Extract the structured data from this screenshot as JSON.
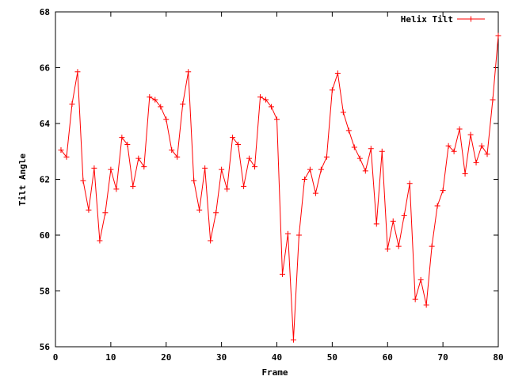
{
  "chart_data": {
    "type": "line",
    "xlabel": "Frame",
    "ylabel": "Tilt Angle",
    "xlim": [
      0,
      80
    ],
    "ylim": [
      56,
      68
    ],
    "xticks": [
      0,
      10,
      20,
      30,
      40,
      50,
      60,
      70,
      80
    ],
    "yticks": [
      56,
      58,
      60,
      62,
      64,
      66,
      68
    ],
    "grid": false,
    "legend_position": "top-right",
    "series": [
      {
        "name": "Helix Tilt",
        "color": "#ff0000",
        "marker": "plus",
        "x": [
          1,
          2,
          3,
          4,
          5,
          6,
          7,
          8,
          9,
          10,
          11,
          12,
          13,
          14,
          15,
          16,
          17,
          18,
          19,
          20,
          21,
          22,
          23,
          24,
          25,
          26,
          27,
          28,
          29,
          30,
          31,
          32,
          33,
          34,
          35,
          36,
          37,
          38,
          39,
          40,
          41,
          42,
          43,
          44,
          45,
          46,
          47,
          48,
          49,
          50,
          51,
          52,
          53,
          54,
          55,
          56,
          57,
          58,
          59,
          60,
          61,
          62,
          63,
          64,
          65,
          66,
          67,
          68,
          69,
          70,
          71,
          72,
          73,
          74,
          75,
          76,
          77,
          78,
          79,
          80
        ],
        "y": [
          63.05,
          62.8,
          64.7,
          65.85,
          61.95,
          60.9,
          62.4,
          59.8,
          60.8,
          62.35,
          61.65,
          63.5,
          63.25,
          61.75,
          62.75,
          62.45,
          64.95,
          64.85,
          64.6,
          64.15,
          63.05,
          62.8,
          64.7,
          65.85,
          61.95,
          60.9,
          62.4,
          59.8,
          60.8,
          62.35,
          61.65,
          63.5,
          63.25,
          61.75,
          62.75,
          62.45,
          64.95,
          64.85,
          64.6,
          64.15,
          58.6,
          60.05,
          56.25,
          60.0,
          62.0,
          62.35,
          61.5,
          62.35,
          62.8,
          65.2,
          65.8,
          64.4,
          63.75,
          63.15,
          62.75,
          62.3,
          63.1,
          60.4,
          63.0,
          59.5,
          60.5,
          59.6,
          60.7,
          61.85,
          57.7,
          58.4,
          57.5,
          59.6,
          61.05,
          61.6,
          63.2,
          63.0,
          63.8,
          62.2,
          63.6,
          62.6,
          63.2,
          62.9,
          64.85,
          67.15
        ]
      }
    ]
  }
}
